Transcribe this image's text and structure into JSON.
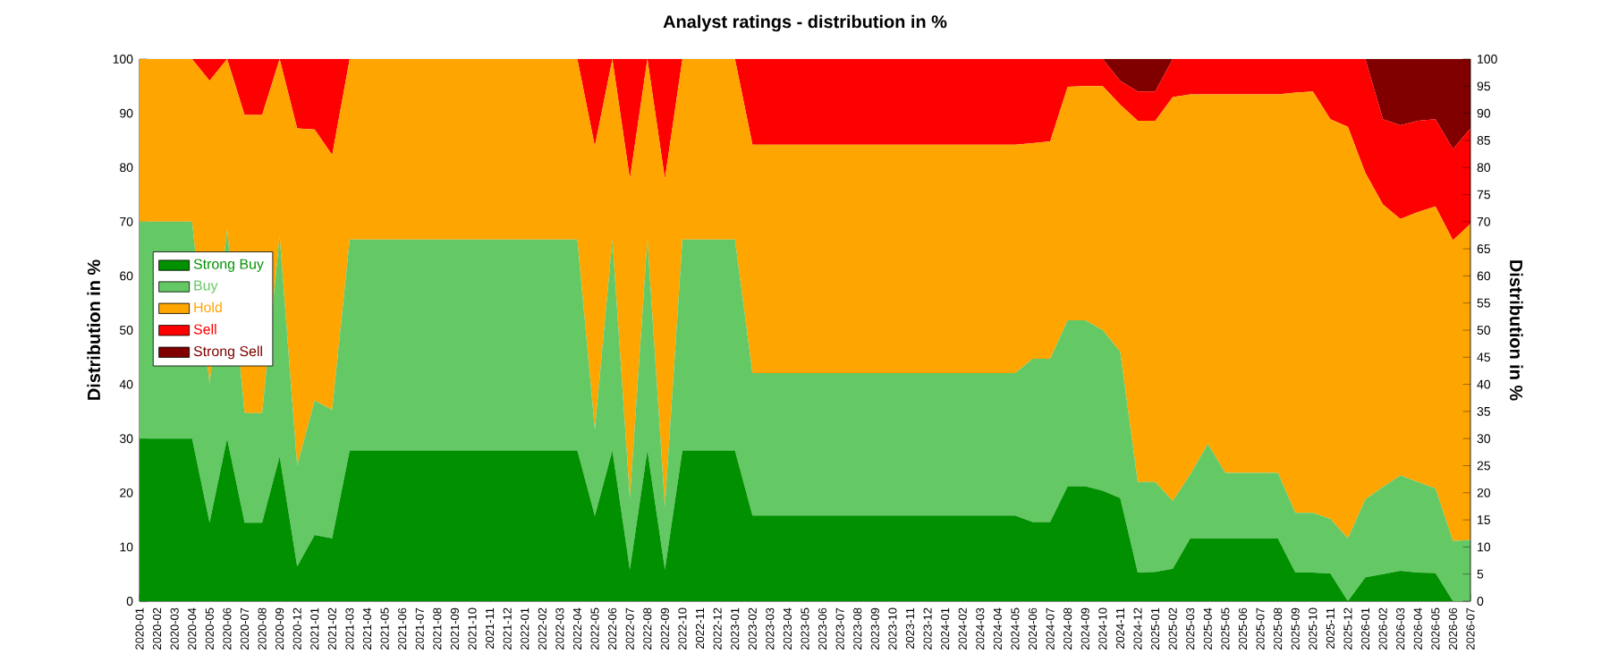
{
  "chart_data": {
    "type": "area",
    "stacked": true,
    "title": "Analyst ratings - distribution in %",
    "ylabel": "Distribution in %",
    "y2label": "Distribution in %",
    "categories": [
      "2020-01",
      "2020-02",
      "2020-03",
      "2020-04",
      "2020-05",
      "2020-06",
      "2020-07",
      "2020-08",
      "2020-09",
      "2020-12",
      "2021-01",
      "2021-02",
      "2021-03",
      "2021-04",
      "2021-05",
      "2021-06",
      "2021-07",
      "2021-08",
      "2021-09",
      "2021-10",
      "2021-11",
      "2021-12",
      "2022-01",
      "2022-02",
      "2022-03",
      "2022-04",
      "2022-05",
      "2022-06",
      "2022-07",
      "2022-08",
      "2022-09",
      "2022-10",
      "2022-11",
      "2022-12",
      "2023-01",
      "2023-02",
      "2023-03",
      "2023-04",
      "2023-05",
      "2023-06",
      "2023-07",
      "2023-08",
      "2023-09",
      "2023-10",
      "2023-11",
      "2023-12",
      "2024-01",
      "2024-02",
      "2024-03",
      "2024-04",
      "2024-05",
      "2024-06",
      "2024-07",
      "2024-08",
      "2024-09",
      "2024-10",
      "2024-11",
      "2024-12",
      "2025-01",
      "2025-02",
      "2025-03",
      "2025-04",
      "2025-05",
      "2025-06",
      "2025-07",
      "2025-08",
      "2025-09",
      "2025-10",
      "2025-11",
      "2025-12",
      "2026-01",
      "2026-02",
      "2026-03",
      "2026-04",
      "2026-05",
      "2026-06",
      "2026-07"
    ],
    "series": [
      {
        "name": "Strong Buy",
        "color": "#009000",
        "values": [
          30,
          30,
          30,
          30,
          14.5,
          30,
          14.5,
          14.5,
          26.7,
          6.4,
          12.2,
          11.6,
          27.8,
          27.8,
          27.8,
          27.8,
          27.8,
          27.8,
          27.8,
          27.8,
          27.8,
          27.8,
          27.8,
          27.8,
          27.8,
          27.8,
          15.7,
          27.8,
          5.8,
          27.8,
          5.8,
          27.8,
          27.8,
          27.8,
          27.8,
          15.8,
          15.8,
          15.8,
          15.8,
          15.8,
          15.8,
          15.8,
          15.8,
          15.8,
          15.8,
          15.8,
          15.8,
          15.8,
          15.8,
          15.8,
          15.8,
          14.6,
          14.6,
          21.2,
          21.2,
          20.4,
          19,
          5.3,
          5.4,
          6,
          11.6,
          11.6,
          11.6,
          11.6,
          11.6,
          11.6,
          5.3,
          5.3,
          5.1,
          0,
          4.4,
          5,
          5.6,
          5.3,
          5.2,
          0,
          0
        ]
      },
      {
        "name": "Buy",
        "color": "#64c864",
        "values": [
          40,
          40,
          40,
          40,
          25.5,
          38.6,
          20.2,
          20.2,
          40.7,
          18.6,
          24.8,
          23.7,
          38.9,
          38.9,
          38.9,
          38.9,
          38.9,
          38.9,
          38.9,
          38.9,
          38.9,
          38.9,
          38.9,
          38.9,
          38.9,
          38.9,
          16,
          38.9,
          13.2,
          38.9,
          11.7,
          38.9,
          38.9,
          38.9,
          38.9,
          26.3,
          26.3,
          26.3,
          26.3,
          26.3,
          26.3,
          26.3,
          26.3,
          26.3,
          26.3,
          26.3,
          26.3,
          26.3,
          26.3,
          26.3,
          26.3,
          30.1,
          30.1,
          30.6,
          30.6,
          29.6,
          27,
          16.7,
          16.6,
          12.5,
          11.8,
          17.4,
          12.1,
          12.1,
          12.1,
          12.1,
          11,
          11,
          10.1,
          11.6,
          14.4,
          16.1,
          17.6,
          16.7,
          15.6,
          11.1,
          11.3
        ]
      },
      {
        "name": "Hold",
        "color": "#ffa500",
        "values": [
          30,
          30,
          30,
          30,
          56,
          31.4,
          55,
          55,
          32.6,
          62.2,
          50,
          47,
          33.3,
          33.3,
          33.3,
          33.3,
          33.3,
          33.3,
          33.3,
          33.3,
          33.3,
          33.3,
          33.3,
          33.3,
          33.3,
          33.3,
          52.2,
          33.3,
          58.9,
          33.3,
          60.4,
          33.3,
          33.3,
          33.3,
          33.3,
          42.1,
          42.1,
          42.1,
          42.1,
          42.1,
          42.1,
          42.1,
          42.1,
          42.1,
          42.1,
          42.1,
          42.1,
          42.1,
          42.1,
          42.1,
          42.1,
          39.8,
          40.1,
          43.1,
          43.2,
          45,
          45.6,
          66.6,
          66.6,
          74.5,
          70.1,
          64.5,
          69.8,
          69.8,
          69.8,
          69.8,
          77.5,
          77.7,
          73.7,
          75.9,
          60.2,
          52.1,
          47.3,
          49.8,
          52,
          55.5,
          58.3
        ]
      },
      {
        "name": "Sell",
        "color": "#ff0000",
        "values": [
          0,
          0,
          0,
          0,
          4,
          0,
          10.3,
          10.3,
          0,
          12.8,
          13,
          17.7,
          0,
          0,
          0,
          0,
          0,
          0,
          0,
          0,
          0,
          0,
          0,
          0,
          0,
          0,
          16.1,
          0,
          22.1,
          0,
          22.1,
          0,
          0,
          0,
          0,
          15.8,
          15.8,
          15.8,
          15.8,
          15.8,
          15.8,
          15.8,
          15.8,
          15.8,
          15.8,
          15.8,
          15.8,
          15.8,
          15.8,
          15.8,
          15.8,
          15.5,
          15.2,
          5.1,
          5,
          5,
          4.4,
          5.4,
          5.4,
          7,
          6.5,
          6.5,
          6.5,
          6.5,
          6.5,
          6.5,
          6.2,
          6,
          11.1,
          12.5,
          21,
          15.7,
          17.3,
          16.8,
          16.1,
          16.8,
          17.6
        ]
      },
      {
        "name": "Strong Sell",
        "color": "#800000",
        "values": [
          0,
          0,
          0,
          0,
          0,
          0,
          0,
          0,
          0,
          0,
          0,
          0,
          0,
          0,
          0,
          0,
          0,
          0,
          0,
          0,
          0,
          0,
          0,
          0,
          0,
          0,
          0,
          0,
          0,
          0,
          0,
          0,
          0,
          0,
          0,
          0,
          0,
          0,
          0,
          0,
          0,
          0,
          0,
          0,
          0,
          0,
          0,
          0,
          0,
          0,
          0,
          0,
          0,
          0,
          0,
          0,
          4,
          6,
          6,
          0,
          0,
          0,
          0,
          0,
          0,
          0,
          0,
          0,
          0,
          0,
          0,
          11.1,
          12.2,
          11.4,
          11.1,
          16.6,
          12.8
        ]
      }
    ],
    "ylim": [
      0,
      100
    ],
    "yticks": [
      0,
      10,
      20,
      30,
      40,
      50,
      60,
      70,
      80,
      90,
      100
    ],
    "y2lim": [
      0,
      100
    ],
    "y2ticks": [
      0,
      5,
      10,
      15,
      20,
      25,
      30,
      35,
      40,
      45,
      50,
      55,
      60,
      65,
      70,
      75,
      80,
      85,
      90,
      95,
      100
    ],
    "grid": "y",
    "legend": "left"
  }
}
